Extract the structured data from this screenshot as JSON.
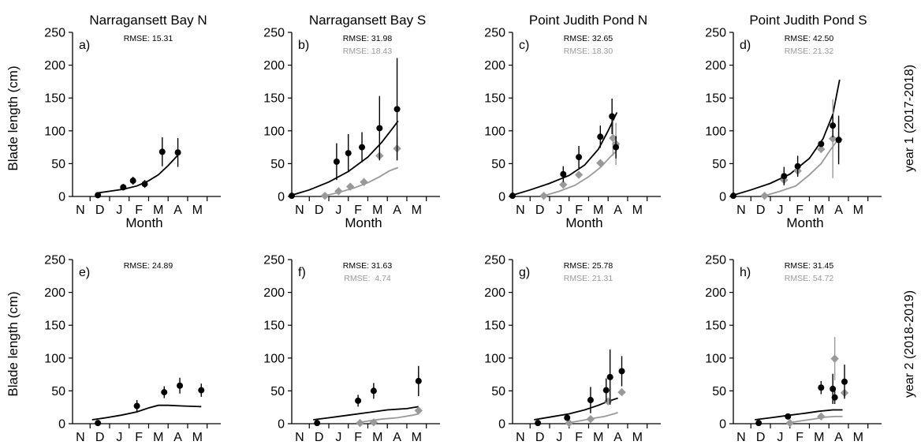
{
  "colors": {
    "observed": "#000000",
    "model2": "#999999"
  },
  "chart_data": {
    "type": "scatter",
    "y_unit_label": "Blade length (cm)",
    "x_axis_label": "Month",
    "month_ticks": [
      "N",
      "D",
      "J",
      "F",
      "M",
      "A",
      "M"
    ],
    "y_ticks": [
      "0",
      "50",
      "100",
      "150",
      "200",
      "250"
    ],
    "ylim": [
      0,
      250
    ],
    "x_units": "months since Nov 1",
    "xlim": [
      -0.4,
      7.2
    ],
    "column_titles": [
      "Narragansett Bay N",
      "Narragansett Bay S",
      "Point Judith Pond N",
      "Point Judith Pond S"
    ],
    "row_labels": [
      "year 1 (2017-2018)",
      "year 2 (2018-2019)"
    ],
    "panels": [
      {
        "letter": "a)",
        "row": 0,
        "col": 0,
        "rmse_black": "RMSE: 15.31",
        "rmse_gray": "",
        "black_line": [
          [
            0.8,
            5
          ],
          [
            1.5,
            8
          ],
          [
            2.2,
            11
          ],
          [
            2.9,
            16
          ],
          [
            3.5,
            24
          ],
          [
            4.0,
            33
          ],
          [
            4.5,
            47
          ],
          [
            5.0,
            63
          ]
        ],
        "gray_line": [],
        "black_points": [
          {
            "x": 0.9,
            "y": 2,
            "err": 0
          },
          {
            "x": 2.2,
            "y": 14,
            "err": 5
          },
          {
            "x": 2.7,
            "y": 24,
            "err": 6
          },
          {
            "x": 3.3,
            "y": 19,
            "err": 6
          },
          {
            "x": 4.2,
            "y": 68,
            "err": 22
          },
          {
            "x": 5.0,
            "y": 67,
            "err": 22
          }
        ],
        "gray_points": []
      },
      {
        "letter": "b)",
        "row": 0,
        "col": 1,
        "rmse_black": "RMSE: 31.98",
        "rmse_gray": "RMSE: 18.43",
        "black_line": [
          [
            -0.4,
            2
          ],
          [
            0.5,
            10
          ],
          [
            1.5,
            22
          ],
          [
            2.5,
            38
          ],
          [
            3.5,
            60
          ],
          [
            4.2,
            82
          ],
          [
            4.8,
            105
          ],
          [
            5.05,
            115
          ]
        ],
        "gray_line": [
          [
            1.3,
            1
          ],
          [
            2.0,
            6
          ],
          [
            2.8,
            13
          ],
          [
            3.5,
            21
          ],
          [
            4.1,
            30
          ],
          [
            4.6,
            39
          ],
          [
            5.05,
            44
          ]
        ],
        "black_points": [
          {
            "x": -0.4,
            "y": 1,
            "err": 0
          },
          {
            "x": 1.9,
            "y": 53,
            "err": 28
          },
          {
            "x": 2.5,
            "y": 66,
            "err": 29
          },
          {
            "x": 3.2,
            "y": 75,
            "err": 23
          },
          {
            "x": 4.1,
            "y": 104,
            "err": 49
          },
          {
            "x": 5.0,
            "y": 133,
            "err": 78
          }
        ],
        "gray_points": [
          {
            "x": 1.3,
            "y": 1,
            "err": 0
          },
          {
            "x": 2.0,
            "y": 8,
            "err": 0
          },
          {
            "x": 2.6,
            "y": 15,
            "err": 0
          },
          {
            "x": 3.3,
            "y": 22,
            "err": 0
          },
          {
            "x": 4.1,
            "y": 62,
            "err": 0
          },
          {
            "x": 5.0,
            "y": 73,
            "err": 18
          }
        ]
      },
      {
        "letter": "c)",
        "row": 0,
        "col": 2,
        "rmse_black": "RMSE: 32.65",
        "rmse_gray": "RMSE: 18.30",
        "black_line": [
          [
            -0.4,
            2
          ],
          [
            0.5,
            10
          ],
          [
            1.5,
            20
          ],
          [
            2.5,
            32
          ],
          [
            3.3,
            48
          ],
          [
            4.0,
            72
          ],
          [
            4.5,
            100
          ],
          [
            4.95,
            128
          ]
        ],
        "gray_line": [
          [
            1.2,
            1
          ],
          [
            2.0,
            8
          ],
          [
            2.8,
            17
          ],
          [
            3.5,
            30
          ],
          [
            4.1,
            44
          ],
          [
            4.6,
            60
          ],
          [
            4.95,
            70
          ]
        ],
        "black_points": [
          {
            "x": -0.4,
            "y": 1,
            "err": 0
          },
          {
            "x": 2.2,
            "y": 34,
            "err": 12
          },
          {
            "x": 3.0,
            "y": 60,
            "err": 17
          },
          {
            "x": 4.1,
            "y": 91,
            "err": 17
          },
          {
            "x": 4.7,
            "y": 122,
            "err": 27
          },
          {
            "x": 4.9,
            "y": 75,
            "err": 17
          }
        ],
        "gray_points": [
          {
            "x": 1.2,
            "y": 1,
            "err": 0
          },
          {
            "x": 2.2,
            "y": 18,
            "err": 0
          },
          {
            "x": 3.0,
            "y": 33,
            "err": 0
          },
          {
            "x": 4.1,
            "y": 51,
            "err": 0
          },
          {
            "x": 4.75,
            "y": 89,
            "err": 27
          },
          {
            "x": 4.9,
            "y": 80,
            "err": 32
          }
        ]
      },
      {
        "letter": "d)",
        "row": 0,
        "col": 3,
        "rmse_black": "RMSE: 42.50",
        "rmse_gray": "RMSE: 21.32",
        "black_line": [
          [
            -0.4,
            2
          ],
          [
            0.5,
            10
          ],
          [
            1.5,
            20
          ],
          [
            2.5,
            34
          ],
          [
            3.5,
            58
          ],
          [
            4.2,
            88
          ],
          [
            4.7,
            125
          ],
          [
            5.05,
            178
          ]
        ],
        "gray_line": [
          [
            1.2,
            1
          ],
          [
            2.0,
            8
          ],
          [
            2.8,
            16
          ],
          [
            3.5,
            33
          ],
          [
            4.1,
            50
          ],
          [
            4.6,
            72
          ],
          [
            4.95,
            86
          ]
        ],
        "black_points": [
          {
            "x": -0.4,
            "y": 1,
            "err": 0
          },
          {
            "x": 2.2,
            "y": 31,
            "err": 14
          },
          {
            "x": 2.9,
            "y": 46,
            "err": 16
          },
          {
            "x": 4.1,
            "y": 80,
            "err": 0
          },
          {
            "x": 4.7,
            "y": 108,
            "err": 18
          },
          {
            "x": 5.0,
            "y": 86,
            "err": 37
          }
        ],
        "gray_points": [
          {
            "x": 1.2,
            "y": 1,
            "err": 0
          },
          {
            "x": 2.2,
            "y": 25,
            "err": 0
          },
          {
            "x": 2.9,
            "y": 39,
            "err": 0
          },
          {
            "x": 4.1,
            "y": 72,
            "err": 0
          },
          {
            "x": 4.7,
            "y": 88,
            "err": 60
          },
          {
            "x": 5.0,
            "y": 87,
            "err": 30
          }
        ]
      },
      {
        "letter": "e)",
        "row": 1,
        "col": 0,
        "rmse_black": "RMSE: 24.89",
        "rmse_gray": "",
        "black_line": [
          [
            0.6,
            6
          ],
          [
            1.3,
            9
          ],
          [
            2.1,
            13
          ],
          [
            2.9,
            18
          ],
          [
            3.5,
            24
          ],
          [
            4.0,
            28
          ],
          [
            4.5,
            28
          ],
          [
            5.2,
            27
          ],
          [
            6.2,
            26
          ]
        ],
        "gray_line": [],
        "black_points": [
          {
            "x": 0.9,
            "y": 1,
            "err": 0
          },
          {
            "x": 2.9,
            "y": 27,
            "err": 9
          },
          {
            "x": 4.3,
            "y": 48,
            "err": 9
          },
          {
            "x": 5.1,
            "y": 58,
            "err": 12
          },
          {
            "x": 6.2,
            "y": 51,
            "err": 10
          }
        ],
        "gray_points": []
      },
      {
        "letter": "f)",
        "row": 1,
        "col": 1,
        "rmse_black": "RMSE: 31.63",
        "rmse_gray": "RMSE:  4.74",
        "black_line": [
          [
            0.7,
            6
          ],
          [
            1.5,
            9
          ],
          [
            2.5,
            13
          ],
          [
            3.5,
            17
          ],
          [
            4.5,
            21
          ],
          [
            5.5,
            23
          ],
          [
            6.1,
            26
          ]
        ],
        "gray_line": [
          [
            2.9,
            1
          ],
          [
            3.5,
            4
          ],
          [
            4.2,
            7
          ],
          [
            5.0,
            9
          ],
          [
            5.8,
            13
          ],
          [
            6.1,
            15
          ]
        ],
        "black_points": [
          {
            "x": 0.9,
            "y": 1,
            "err": 0
          },
          {
            "x": 3.0,
            "y": 35,
            "err": 9
          },
          {
            "x": 3.8,
            "y": 50,
            "err": 12
          },
          {
            "x": 6.1,
            "y": 65,
            "err": 23
          }
        ],
        "gray_points": [
          {
            "x": 3.1,
            "y": 1,
            "err": 0
          },
          {
            "x": 3.8,
            "y": 2,
            "err": 0
          },
          {
            "x": 6.1,
            "y": 20,
            "err": 0
          }
        ]
      },
      {
        "letter": "g)",
        "row": 1,
        "col": 2,
        "rmse_black": "RMSE: 25.78",
        "rmse_gray": "RMSE: 21.31",
        "black_line": [
          [
            0.7,
            6
          ],
          [
            1.5,
            10
          ],
          [
            2.5,
            15
          ],
          [
            3.3,
            21
          ],
          [
            4.0,
            28
          ],
          [
            4.5,
            34
          ],
          [
            5.0,
            39
          ]
        ],
        "gray_line": [
          [
            2.4,
            1
          ],
          [
            3.0,
            4
          ],
          [
            3.7,
            8
          ],
          [
            4.3,
            11
          ],
          [
            4.8,
            15
          ],
          [
            5.0,
            17
          ]
        ],
        "black_points": [
          {
            "x": 0.9,
            "y": 1,
            "err": 0
          },
          {
            "x": 2.4,
            "y": 9,
            "err": 0
          },
          {
            "x": 3.6,
            "y": 36,
            "err": 20
          },
          {
            "x": 4.4,
            "y": 51,
            "err": 18
          },
          {
            "x": 4.6,
            "y": 71,
            "err": 42
          },
          {
            "x": 5.2,
            "y": 80,
            "err": 23
          }
        ],
        "gray_points": [
          {
            "x": 2.5,
            "y": 1,
            "err": 0
          },
          {
            "x": 3.6,
            "y": 7,
            "err": 0
          },
          {
            "x": 4.5,
            "y": 34,
            "err": 0
          },
          {
            "x": 5.2,
            "y": 48,
            "err": 0
          }
        ]
      },
      {
        "letter": "h)",
        "row": 1,
        "col": 3,
        "rmse_black": "RMSE: 31.45",
        "rmse_gray": "RMSE: 54.72",
        "black_line": [
          [
            0.7,
            6
          ],
          [
            1.5,
            9
          ],
          [
            2.5,
            13
          ],
          [
            3.3,
            16
          ],
          [
            4.0,
            19
          ],
          [
            4.7,
            21
          ],
          [
            5.2,
            21
          ]
        ],
        "gray_line": [
          [
            2.4,
            1
          ],
          [
            3.0,
            4
          ],
          [
            3.7,
            7
          ],
          [
            4.3,
            10
          ],
          [
            4.8,
            11
          ],
          [
            5.2,
            11
          ]
        ],
        "black_points": [
          {
            "x": 0.9,
            "y": 1,
            "err": 0
          },
          {
            "x": 2.4,
            "y": 11,
            "err": 0
          },
          {
            "x": 4.1,
            "y": 55,
            "err": 10
          },
          {
            "x": 4.7,
            "y": 53,
            "err": 23
          },
          {
            "x": 4.8,
            "y": 40,
            "err": 10
          },
          {
            "x": 5.3,
            "y": 64,
            "err": 26
          }
        ],
        "gray_points": [
          {
            "x": 2.5,
            "y": 1,
            "err": 0
          },
          {
            "x": 4.1,
            "y": 11,
            "err": 0
          },
          {
            "x": 4.8,
            "y": 99,
            "err": 33
          },
          {
            "x": 5.3,
            "y": 47,
            "err": 0
          }
        ]
      }
    ]
  }
}
